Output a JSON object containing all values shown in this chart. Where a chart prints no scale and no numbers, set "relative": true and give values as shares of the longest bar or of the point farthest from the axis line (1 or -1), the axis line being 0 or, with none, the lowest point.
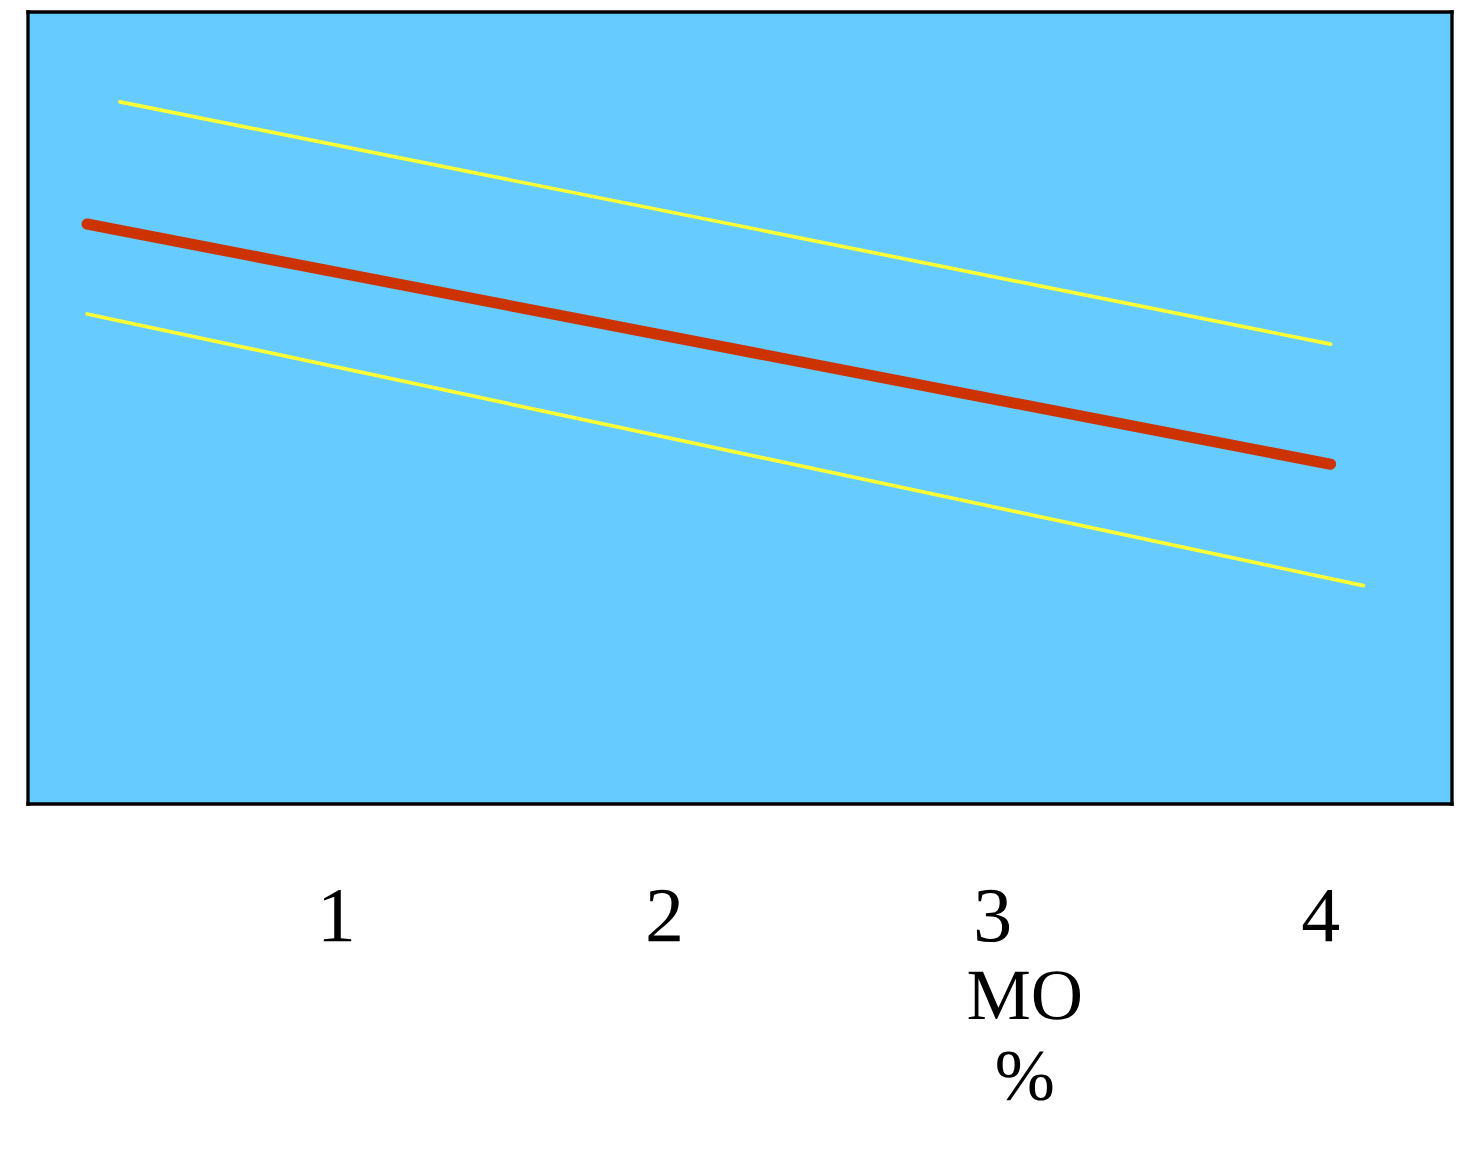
{
  "chart_data": {
    "type": "line",
    "relative": true,
    "xlabel": "MO\n%",
    "xlim": [
      0.06,
      4.4
    ],
    "xticks": [
      1,
      2,
      3,
      4
    ],
    "series": [
      {
        "color": "#ffff33",
        "x": [
          0.34,
          4.03
        ],
        "values": [
          1.0,
          0.655
        ]
      },
      {
        "color": "#cc3300",
        "x": [
          0.24,
          4.03
        ],
        "values": [
          0.826,
          0.484
        ]
      },
      {
        "color": "#ffff33",
        "x": [
          0.24,
          4.13
        ],
        "values": [
          0.698,
          0.311
        ]
      }
    ],
    "legend": false,
    "grid": false,
    "marker": "none",
    "line_style": "solid"
  }
}
